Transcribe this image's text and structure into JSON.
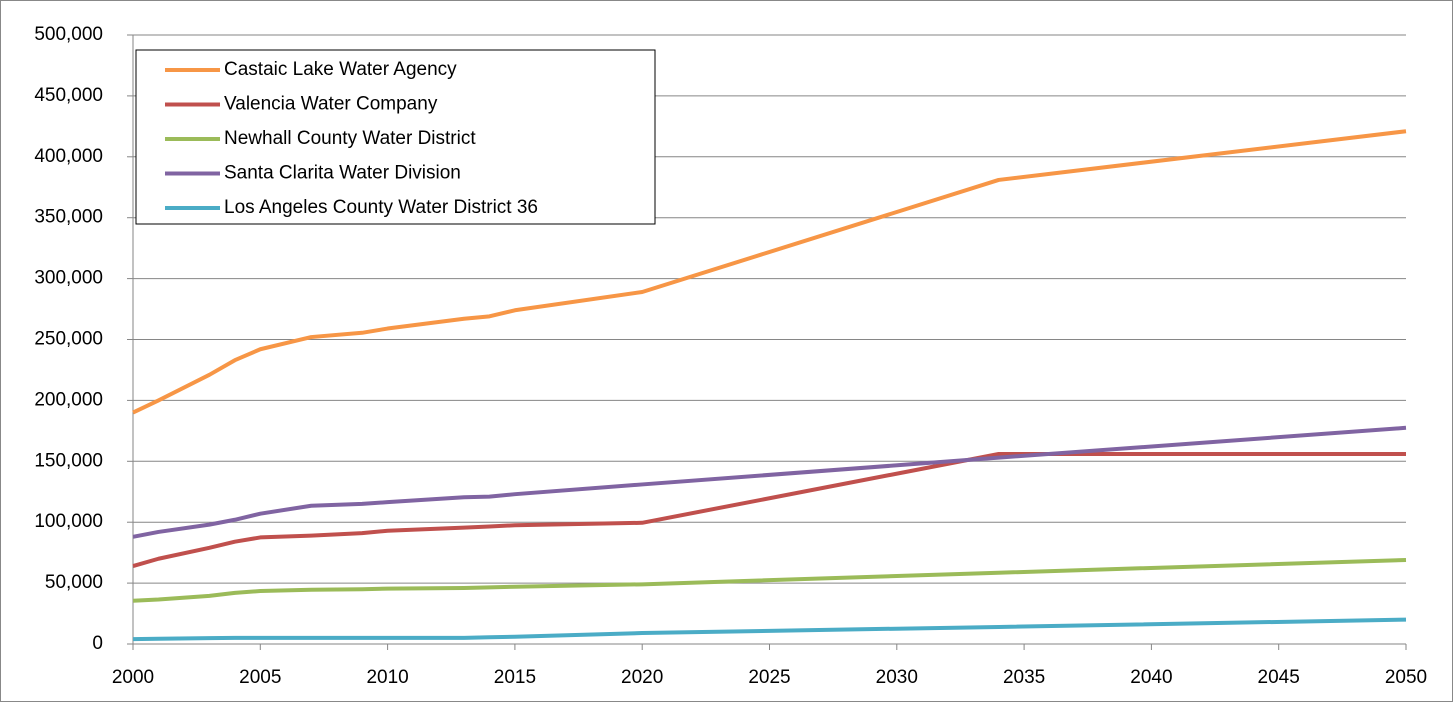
{
  "chart_data": {
    "type": "line",
    "x": [
      2000,
      2001,
      2003,
      2004,
      2005,
      2007,
      2009,
      2010,
      2013,
      2014,
      2015,
      2020,
      2034,
      2050
    ],
    "series": [
      {
        "name": "Castaic Lake Water Agency",
        "color": "#F79646",
        "values": [
          190000,
          200000,
          221000,
          233000,
          242000,
          252000,
          255500,
          259000,
          267000,
          269000,
          274000,
          289000,
          381000,
          421000
        ]
      },
      {
        "name": "Valencia Water Company",
        "color": "#C0504D",
        "values": [
          64000,
          70000,
          79000,
          84000,
          87500,
          89000,
          91000,
          93000,
          95500,
          96500,
          97500,
          99500,
          156000,
          156000
        ]
      },
      {
        "name": "Newhall County Water District",
        "color": "#9BBB59",
        "values": [
          35500,
          36500,
          39500,
          42000,
          43500,
          44500,
          45000,
          45500,
          46000,
          46500,
          47000,
          49000,
          58500,
          69000
        ]
      },
      {
        "name": "Santa Clarita Water Division",
        "color": "#8064A2",
        "values": [
          88000,
          92000,
          98000,
          102000,
          107000,
          113500,
          115000,
          116500,
          120500,
          121000,
          123000,
          131000,
          153000,
          177500
        ]
      },
      {
        "name": "Los Angeles County Water District 36",
        "color": "#4BACC6",
        "values": [
          4000,
          4300,
          4800,
          5000,
          5000,
          5000,
          5000,
          5000,
          5000,
          5500,
          6000,
          9000,
          14000,
          20000
        ]
      }
    ],
    "xlim": [
      2000,
      2050
    ],
    "xticks": [
      2000,
      2005,
      2010,
      2015,
      2020,
      2025,
      2030,
      2035,
      2040,
      2045,
      2050
    ],
    "ylim": [
      0,
      500000
    ],
    "yticks": [
      0,
      {
        "value": 50000,
        "label": "50,000"
      },
      {
        "value": 100000,
        "label": "100,000"
      },
      {
        "value": 150000,
        "label": "150,000"
      },
      {
        "value": 200000,
        "label": "200,000"
      },
      {
        "value": 250000,
        "label": "250,000"
      },
      {
        "value": 300000,
        "label": "300,000"
      },
      {
        "value": 350000,
        "label": "350,000"
      },
      {
        "value": 400000,
        "label": "400,000"
      },
      {
        "value": 450000,
        "label": "450,000"
      },
      {
        "value": 500000,
        "label": "500,000"
      }
    ],
    "grid": true,
    "legend": "upper-left"
  }
}
